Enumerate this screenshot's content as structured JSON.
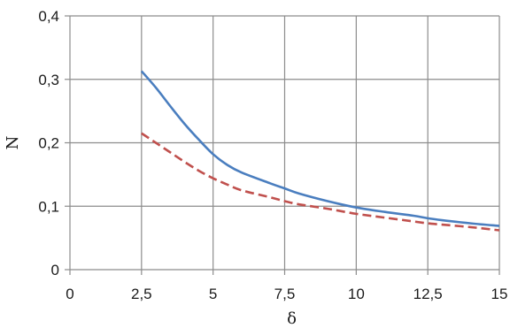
{
  "chart_data": {
    "type": "line",
    "title": "",
    "xlabel": "δ",
    "ylabel": "N",
    "xlim": [
      0,
      15
    ],
    "ylim": [
      0,
      0.4
    ],
    "x_ticks": [
      0,
      2.5,
      5,
      7.5,
      10,
      12.5,
      15
    ],
    "x_tick_labels": [
      "0",
      "2,5",
      "5",
      "7,5",
      "10",
      "12,5",
      "15"
    ],
    "y_ticks": [
      0,
      0.1,
      0.2,
      0.3,
      0.4
    ],
    "y_tick_labels": [
      "0",
      "0,1",
      "0,2",
      "0,3",
      "0,4"
    ],
    "grid": true,
    "legend": "none",
    "series": [
      {
        "style": "solid",
        "color": "#4a7ebf",
        "x": [
          2.5,
          3,
          3.5,
          4,
          4.5,
          5,
          5.5,
          6,
          7,
          7.5,
          8,
          9,
          10,
          11,
          12,
          12.5,
          13,
          14,
          15
        ],
        "y": [
          0.313,
          0.287,
          0.258,
          0.23,
          0.205,
          0.182,
          0.165,
          0.153,
          0.136,
          0.128,
          0.12,
          0.108,
          0.098,
          0.091,
          0.085,
          0.081,
          0.078,
          0.073,
          0.069
        ]
      },
      {
        "style": "dashed",
        "color": "#c0504d",
        "x": [
          2.5,
          3,
          3.5,
          4,
          4.5,
          5,
          5.5,
          6,
          7,
          7.5,
          8,
          9,
          10,
          11,
          12,
          12.5,
          13,
          14,
          15
        ],
        "y": [
          0.215,
          0.2,
          0.185,
          0.17,
          0.156,
          0.144,
          0.134,
          0.125,
          0.114,
          0.108,
          0.103,
          0.096,
          0.088,
          0.082,
          0.076,
          0.073,
          0.071,
          0.067,
          0.062
        ]
      }
    ]
  }
}
